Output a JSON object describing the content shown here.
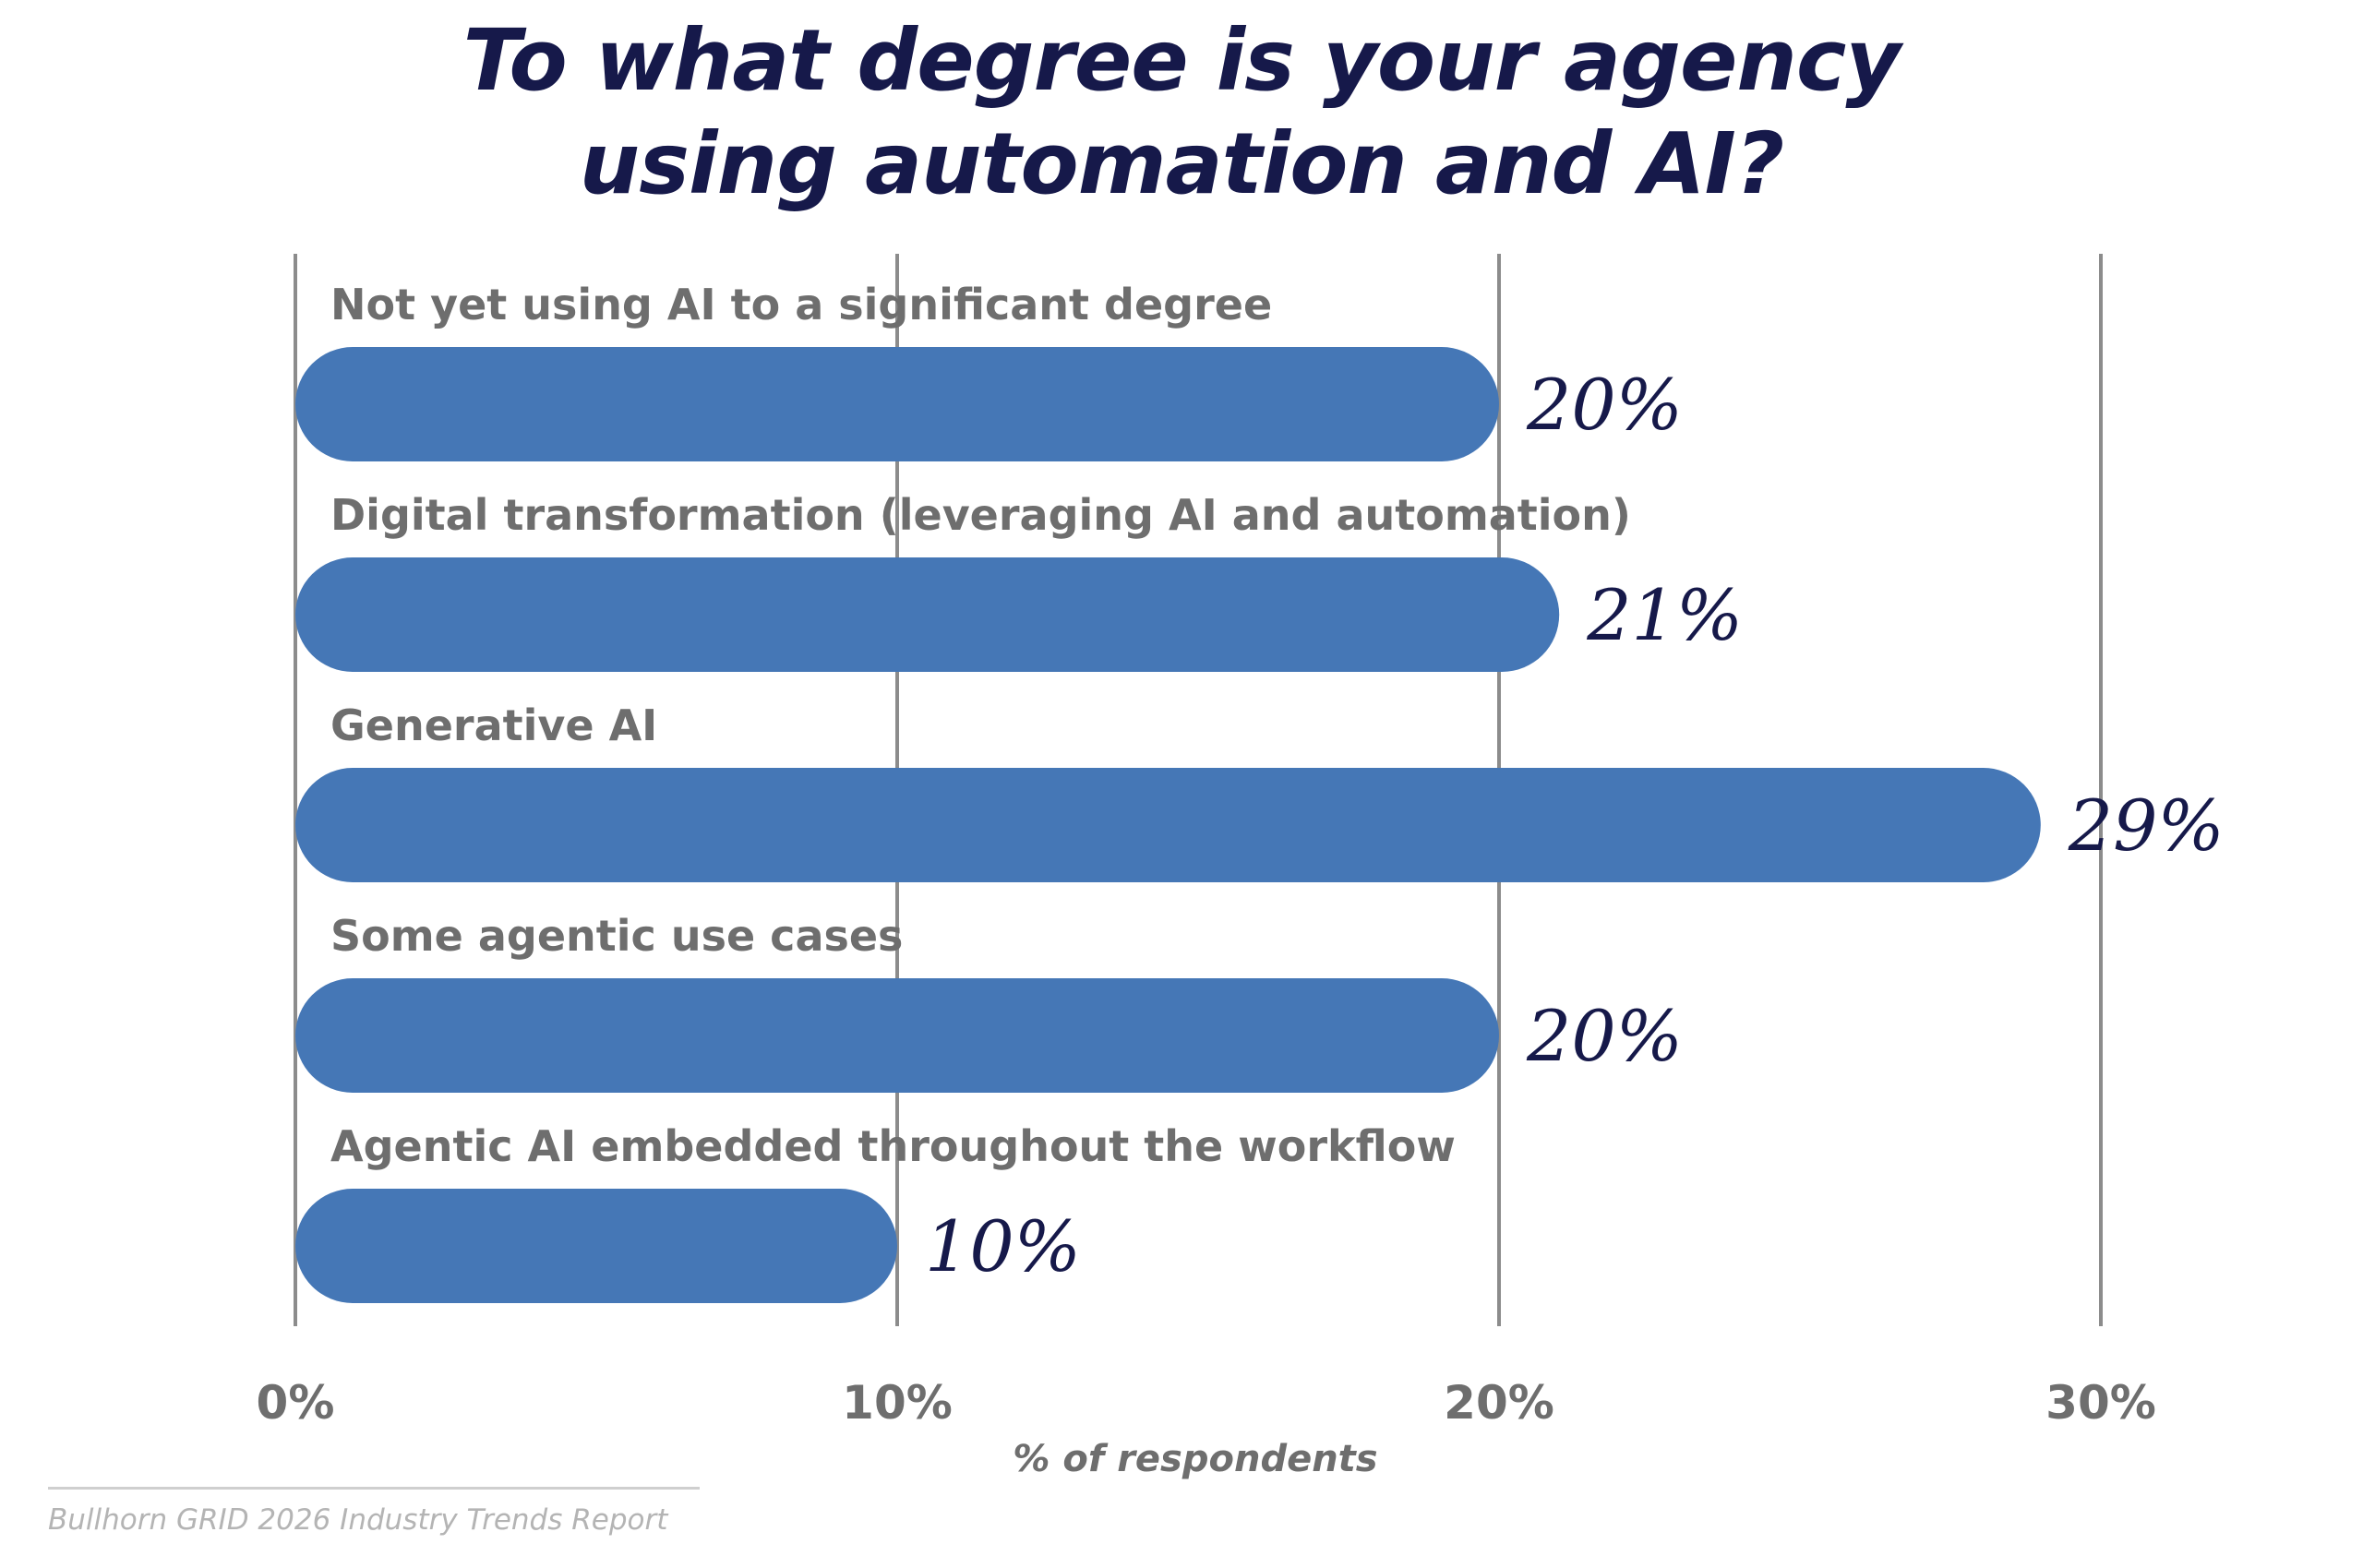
{
  "title_lines": [
    "To what degree is your agency",
    "using automation and AI?"
  ],
  "chart_data": {
    "type": "bar",
    "orientation": "horizontal",
    "categories": [
      "Not yet using AI to a significant degree",
      "Digital transformation (leveraging AI and automation)",
      "Generative AI",
      "Some agentic use cases",
      "Agentic AI embedded throughout the workflow"
    ],
    "values": [
      20,
      21,
      29,
      20,
      10
    ],
    "value_labels": [
      "20%",
      "21%",
      "29%",
      "20%",
      "10%"
    ],
    "xlabel": "% of respondents",
    "ylabel": "",
    "xlim": [
      0,
      30
    ],
    "ticks": [
      0,
      10,
      20,
      30
    ],
    "tick_labels": [
      "0%",
      "10%",
      "20%",
      "30%"
    ],
    "grid": true,
    "bar_color": "#4577b6",
    "grid_color": "#8c8c8c",
    "label_color": "#6e6e6e",
    "value_color": "#16194a"
  },
  "source": "Bullhorn GRID 2026 Industry Trends Report",
  "colors": {
    "title": "#16194a",
    "background": "#ffffff"
  }
}
